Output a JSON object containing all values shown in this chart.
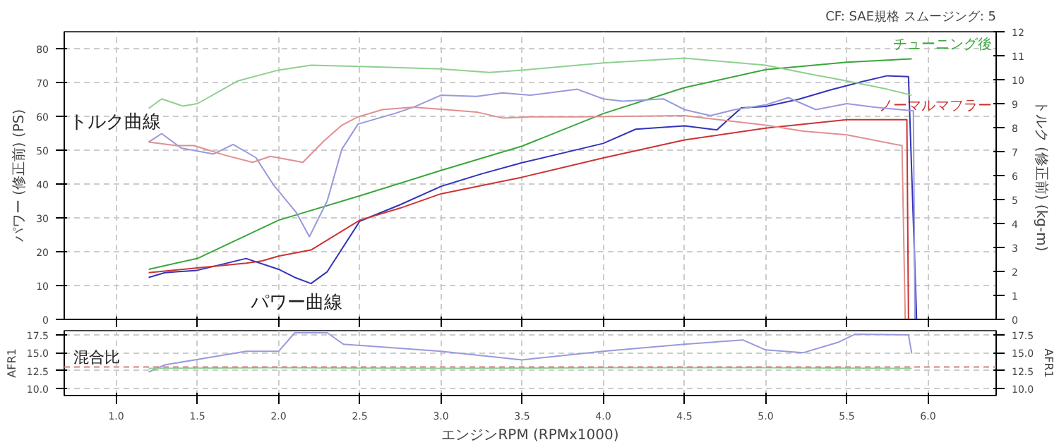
{
  "chart_data": [
    {
      "type": "line",
      "subtitle": "CF: SAE規格 スムージング: 5",
      "ylabel": "パワー (修正前) (PS)",
      "y2label": "トルク (修正前) (kg-m)",
      "xlim": [
        0.68,
        6.42
      ],
      "xticks": [
        1,
        1.5,
        2,
        2.5,
        3,
        3.5,
        4,
        4.5,
        5,
        5.5,
        6
      ],
      "ylim": [
        0,
        85
      ],
      "yticks": [
        0,
        10,
        20,
        30,
        40,
        50,
        60,
        70,
        80
      ],
      "y2lim": [
        0,
        12
      ],
      "y2ticks": [
        0,
        1,
        2,
        3,
        4,
        5,
        6,
        7,
        8,
        9,
        10,
        11,
        12
      ],
      "grid": true,
      "tick_labels": "y",
      "annotations": [
        "トルク曲線",
        "パワー曲線"
      ],
      "series": [
        {
          "name": "チューニング後",
          "color": "#3aa63a",
          "x": [
            1.2,
            1.5,
            2.0,
            2.5,
            3.0,
            3.5,
            4.0,
            4.5,
            5.0,
            5.5,
            5.9
          ],
          "values": [
            14.8,
            18,
            29.3,
            36.5,
            44,
            51.2,
            60.8,
            68.5,
            73.8,
            76,
            77
          ]
        },
        {
          "color": "#3333bb",
          "x": [
            1.2,
            1.3,
            1.5,
            1.8,
            2.0,
            2.1,
            2.2,
            2.3,
            2.5,
            2.75,
            3.0,
            3.25,
            3.5,
            4.0,
            4.2,
            4.5,
            4.7,
            4.85,
            5.0,
            5.2,
            5.4,
            5.6,
            5.75,
            5.88,
            5.93
          ],
          "values": [
            12.4,
            13.8,
            14.5,
            18,
            14.8,
            12.4,
            10.6,
            14.1,
            29,
            33.9,
            39.3,
            43,
            46.3,
            52,
            56.2,
            57.2,
            56,
            62.5,
            62.9,
            65,
            67.8,
            70.3,
            72,
            71.7,
            0
          ]
        },
        {
          "name": "ノーマルマフラー",
          "color": "#cc3333",
          "x": [
            1.2,
            1.5,
            1.8,
            1.9,
            2.0,
            2.2,
            2.5,
            2.75,
            3.0,
            3.5,
            4.0,
            4.5,
            5.0,
            5.5,
            5.87,
            5.88
          ],
          "values": [
            13.8,
            15.2,
            16.6,
            17.3,
            18.7,
            20.5,
            29.3,
            32.9,
            37.1,
            42,
            47.7,
            53,
            56.5,
            59,
            59,
            0
          ]
        },
        {
          "color": "#8fd08f",
          "axis": "y2",
          "x": [
            1.2,
            1.28,
            1.41,
            1.5,
            1.75,
            2.0,
            2.2,
            2.5,
            3.0,
            3.3,
            3.5,
            4.0,
            4.5,
            5.0,
            5.3,
            5.5,
            5.75,
            5.9
          ],
          "values": [
            8.8,
            9.2,
            8.9,
            9.0,
            9.95,
            10.4,
            10.6,
            10.55,
            10.45,
            10.3,
            10.4,
            10.7,
            10.9,
            10.6,
            10.2,
            9.95,
            9.6,
            9.35
          ]
        },
        {
          "color": "#9999dd",
          "axis": "y2",
          "x": [
            1.2,
            1.28,
            1.4,
            1.6,
            1.72,
            1.86,
            1.97,
            2.11,
            2.19,
            2.3,
            2.39,
            2.49,
            2.72,
            2.83,
            3.0,
            3.22,
            3.38,
            3.55,
            3.84,
            4.0,
            4.12,
            4.37,
            4.5,
            4.66,
            4.81,
            5.0,
            5.14,
            5.31,
            5.5,
            5.67,
            5.91,
            5.92
          ],
          "values": [
            7.4,
            7.75,
            7.15,
            6.9,
            7.3,
            6.75,
            5.6,
            4.45,
            3.45,
            4.95,
            7.1,
            8.15,
            8.6,
            8.85,
            9.35,
            9.3,
            9.45,
            9.35,
            9.6,
            9.2,
            9.1,
            9.2,
            8.75,
            8.5,
            8.75,
            8.95,
            9.25,
            8.75,
            9.0,
            8.85,
            8.7,
            0
          ]
        },
        {
          "color": "#e09090",
          "axis": "y2",
          "x": [
            1.2,
            1.37,
            1.48,
            1.67,
            1.84,
            1.95,
            2.15,
            2.28,
            2.39,
            2.49,
            2.64,
            2.83,
            3.03,
            3.22,
            3.38,
            3.55,
            3.84,
            4.5,
            5.0,
            5.23,
            5.5,
            5.84,
            5.86
          ],
          "values": [
            7.4,
            7.25,
            7.25,
            6.85,
            6.55,
            6.8,
            6.55,
            7.45,
            8.1,
            8.45,
            8.75,
            8.85,
            8.75,
            8.65,
            8.4,
            8.45,
            8.45,
            8.5,
            8.1,
            7.85,
            7.7,
            7.25,
            0
          ]
        }
      ]
    },
    {
      "type": "line",
      "xlabel": "エンジンRPM (RPMx1000)",
      "ylabel": "AFR1",
      "y2label": "AFR1",
      "xlim": [
        0.68,
        6.42
      ],
      "xticks": [
        {
          "value": 1,
          "label": "1.0"
        },
        1.5,
        {
          "value": 2,
          "label": "2.0"
        },
        2.5,
        {
          "value": 3,
          "label": "3.0"
        },
        3.5,
        {
          "value": 4,
          "label": "4.0"
        },
        4.5,
        {
          "value": 5,
          "label": "5.0"
        },
        5.5,
        {
          "value": 6,
          "label": "6.0"
        }
      ],
      "ylim": [
        9,
        18.1
      ],
      "yticks": [
        {
          "value": 10,
          "label": "10.0"
        },
        12.5,
        {
          "value": 15,
          "label": "15.0"
        },
        17.5
      ],
      "y2lim": [
        9,
        18.1
      ],
      "y2ticks": [
        {
          "value": 10,
          "label": "10.0"
        },
        12.5,
        {
          "value": 15,
          "label": "15.0"
        },
        17.5
      ],
      "grid": true,
      "annotations": [
        "混合比"
      ],
      "ref_lines": [
        {
          "axis": "y",
          "value": 13.0,
          "color": "#d08080",
          "line_style": "dashed"
        }
      ],
      "series": [
        {
          "color": "#9999dd",
          "x": [
            1.2,
            1.3,
            1.8,
            2.0,
            2.1,
            2.3,
            2.4,
            3.0,
            3.5,
            4.0,
            4.5,
            4.86,
            5.0,
            5.23,
            5.45,
            5.55,
            5.88,
            5.9
          ],
          "values": [
            12.3,
            13.3,
            15.2,
            15.2,
            17.8,
            17.8,
            16.2,
            15.2,
            14,
            15.2,
            16.2,
            16.8,
            15.4,
            15.0,
            16.5,
            17.6,
            17.5,
            14.9
          ]
        },
        {
          "color": "#8fd08f",
          "x": [
            1.2,
            2.0,
            3.0,
            4.0,
            5.0,
            5.9
          ],
          "values": [
            12.8,
            12.9,
            12.8,
            12.9,
            12.9,
            12.8
          ]
        }
      ]
    }
  ]
}
